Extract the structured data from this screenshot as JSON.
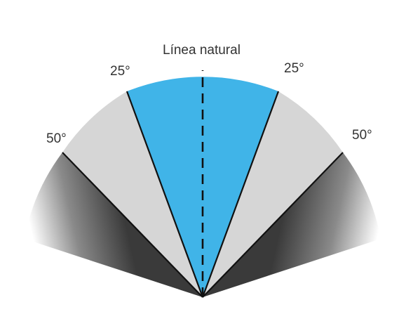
{
  "diagram": {
    "title": "Línea natural",
    "labels": {
      "left_25": "25°",
      "right_25": "25°",
      "left_50": "50°",
      "right_50": "50°"
    },
    "angles_deg": {
      "inner": 25,
      "outer": 50
    },
    "colors": {
      "center_zone": "#40b4e8",
      "middle_zone": "#d6d6d6",
      "outer_zone_dark": "#3a3a3a",
      "outer_zone_light": "#ffffff",
      "edge_line": "#111111",
      "center_line": "#111111"
    }
  }
}
